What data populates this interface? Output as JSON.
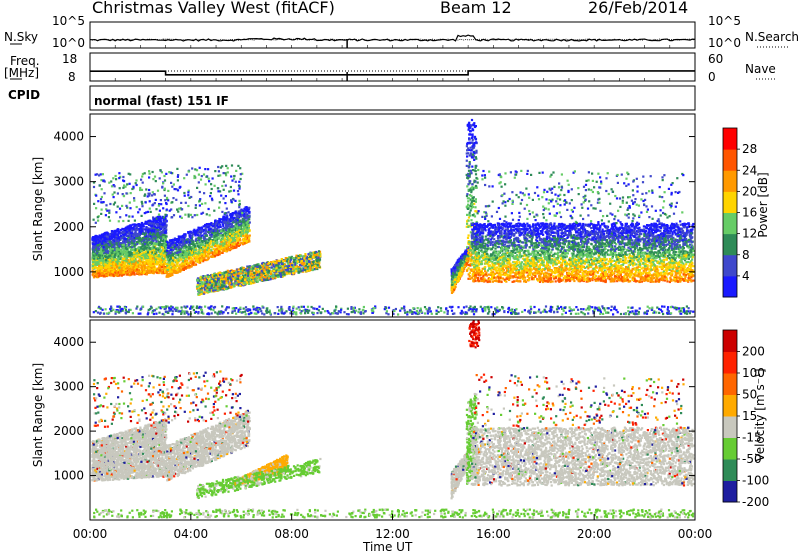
{
  "header": {
    "station": "Christmas Valley West (fitACF)",
    "beam": "Beam 12",
    "date": "26/Feb/2014"
  },
  "left_labels": {
    "nsky": "N.Sky",
    "freq_line1": "Freq.",
    "freq_line2": "[MHz]",
    "cpid": "CPID"
  },
  "right_labels": {
    "nsearch": "N.Search",
    "nave": "Nave"
  },
  "scale_ticks": {
    "noise_left": [
      "10^5",
      "10^0"
    ],
    "noise_right": [
      "10^5",
      "10^0"
    ],
    "freq_left": [
      "18",
      "8"
    ],
    "nave_right": [
      "60",
      "0"
    ]
  },
  "cpid_text": "normal (fast) 151 IF",
  "colors": {
    "power": [
      "#1a1aff",
      "#3f48cc",
      "#2e8b57",
      "#66cc66",
      "#ffd400",
      "#ff9900",
      "#ff5500",
      "#ff0000"
    ],
    "velocity": [
      "#1e1ea0",
      "#2e8b57",
      "#66cc33",
      "#c8c8be",
      "#ffaa00",
      "#ff6600",
      "#ff2200",
      "#cc0000"
    ]
  },
  "chart_data": [
    {
      "type": "line",
      "title": "N.Sky / N.Search",
      "y_scale": "log",
      "ylim": [
        1,
        100000
      ],
      "x": [
        "00:00",
        "04:00",
        "08:00",
        "12:00",
        "16:00",
        "20:00",
        "00:00"
      ]
    },
    {
      "type": "line",
      "title": "Freq. / Nave",
      "xlabel": "",
      "ylabel": "Freq. [MHz]",
      "ylim": [
        8,
        18
      ],
      "y2label": "Nave",
      "y2lim": [
        0,
        60
      ],
      "series": [
        {
          "name": "Freq.",
          "x": [
            "00:00",
            "03:00",
            "03:00",
            "15:00",
            "15:00",
            "24:00"
          ],
          "values": [
            11.5,
            11.5,
            10.2,
            10.2,
            11.6,
            11.6
          ]
        }
      ]
    },
    {
      "type": "heatmap",
      "ylabel": "Slant Range [km]",
      "ylim": [
        0,
        4500
      ],
      "yticks": [
        "1000",
        "2000",
        "3000",
        "4000"
      ],
      "xticks": [
        "00:00",
        "04:00",
        "08:00",
        "12:00",
        "16:00",
        "20:00",
        "00:00"
      ],
      "colorbar_label": "Power [dB]",
      "colorbar_ticks": [
        "28",
        "24",
        "20",
        "16",
        "12",
        "8",
        "4"
      ]
    },
    {
      "type": "heatmap",
      "ylabel": "Slant Range [km]",
      "xlabel": "Time UT",
      "ylim": [
        0,
        4500
      ],
      "yticks": [
        "1000",
        "2000",
        "3000",
        "4000"
      ],
      "xticks": [
        "00:00",
        "04:00",
        "08:00",
        "12:00",
        "16:00",
        "20:00",
        "00:00"
      ],
      "colorbar_label": "Velocity [m s⁻¹]",
      "colorbar_ticks": [
        "200",
        "100",
        "50",
        "15",
        "-15",
        "-50",
        "-100",
        "-200"
      ]
    }
  ]
}
